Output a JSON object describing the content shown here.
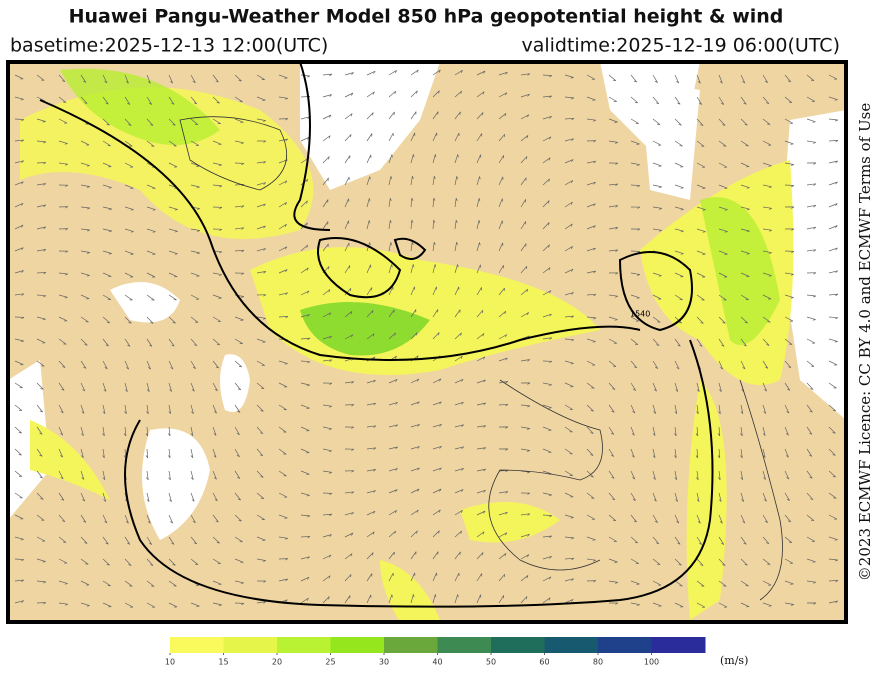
{
  "header": {
    "title": "Huawei Pangu-Weather Model 850 hPa geopotential height & wind",
    "basetime": "basetime:2025-12-13 12:00(UTC)",
    "validtime": "validtime:2025-12-19 06:00(UTC)"
  },
  "credit": "©2023 ECMWF Licence: CC BY 4.0 and ECMWF Terms of Use",
  "map": {
    "contour_labels": [
      "1540"
    ]
  },
  "colorbar": {
    "ticks": [
      10,
      15,
      20,
      25,
      30,
      40,
      50,
      60,
      80,
      100
    ],
    "colors": [
      "#fafa5c",
      "#e6f54a",
      "#b8f232",
      "#96e61e",
      "#6aa83c",
      "#3d8a52",
      "#1f6e5c",
      "#175a70",
      "#1f418c",
      "#2a2c9c"
    ],
    "unit": "(m/s)"
  }
}
